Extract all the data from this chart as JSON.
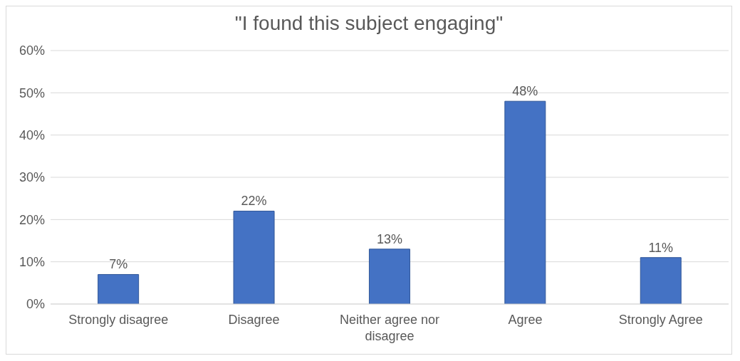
{
  "chart_data": {
    "type": "bar",
    "title": "\"I found this subject engaging\"",
    "categories": [
      "Strongly disagree",
      "Disagree",
      "Neither agree nor disagree",
      "Agree",
      "Strongly Agree"
    ],
    "values": [
      7,
      22,
      13,
      48,
      11
    ],
    "value_labels": [
      "7%",
      "22%",
      "13%",
      "48%",
      "11%"
    ],
    "color": "#4472c4",
    "ylim": [
      0,
      60
    ],
    "yticks": [
      {
        "value": 0,
        "label": "0%"
      },
      {
        "value": 10,
        "label": "10%"
      },
      {
        "value": 20,
        "label": "20%"
      },
      {
        "value": 30,
        "label": "30%"
      },
      {
        "value": 40,
        "label": "40%"
      },
      {
        "value": 50,
        "label": "50%"
      },
      {
        "value": 60,
        "label": "60%"
      }
    ],
    "grid": "y",
    "legend": false
  }
}
